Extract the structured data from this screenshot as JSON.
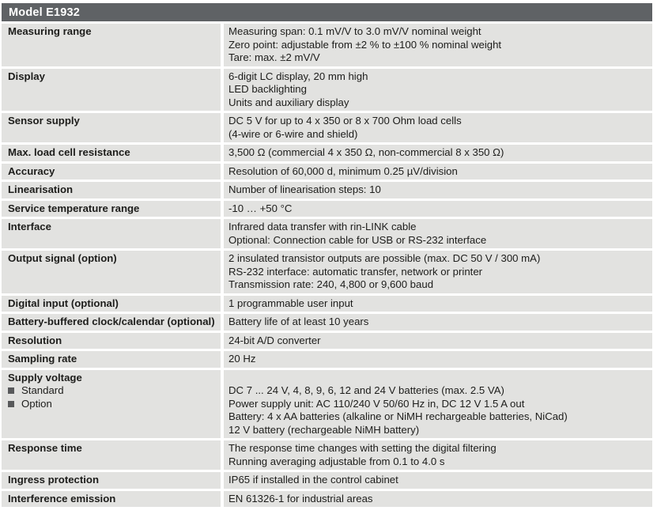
{
  "header": {
    "title": "Model E1932"
  },
  "colors": {
    "header_bg": "#5f6265",
    "title_text": "#ffffff",
    "row_bg": "#e2e2e0",
    "body_text": "#1d1d1b",
    "bullet": "#58595b",
    "page_bg": "#ffffff"
  },
  "table": {
    "rows": [
      {
        "label": "Measuring range",
        "values": [
          "Measuring span: 0.1 mV/V to 3.0 mV/V nominal weight",
          "Zero point: adjustable from ±2 % to ±100 % nominal weight",
          "Tare: max. ±2 mV/V"
        ]
      },
      {
        "label": "Display",
        "values": [
          "6-digit LC display, 20 mm high",
          "LED backlighting",
          "Units and auxiliary display"
        ]
      },
      {
        "label": "Sensor supply",
        "values": [
          "DC 5 V for up to 4 x 350 or 8 x 700 Ohm load cells",
          "(4-wire or 6-wire and shield)"
        ]
      },
      {
        "label": "Max. load cell resistance",
        "values": [
          "3,500 Ω (commercial 4 x 350 Ω, non-commercial 8 x 350 Ω)"
        ]
      },
      {
        "label": "Accuracy",
        "values": [
          "Resolution of 60,000 d, minimum 0.25 µV/division"
        ]
      },
      {
        "label": "Linearisation",
        "values": [
          "Number of linearisation steps: 10"
        ]
      },
      {
        "label": "Service temperature range",
        "values": [
          "-10 … +50 °C"
        ]
      },
      {
        "label": "Interface",
        "values": [
          "Infrared data transfer with rin-LINK cable",
          "Optional: Connection cable for USB or RS-232 interface"
        ]
      },
      {
        "label": "Output signal (option)",
        "values": [
          "2 insulated transistor outputs are possible (max. DC 50 V / 300 mA)",
          "RS-232 interface: automatic transfer, network or printer",
          "Transmission rate: 240, 4,800 or 9,600 baud"
        ]
      },
      {
        "label": "Digital input (optional)",
        "values": [
          "1 programmable user input"
        ]
      },
      {
        "label": "Battery-buffered clock/calendar (optional)",
        "values": [
          "Battery life of at least 10 years"
        ]
      },
      {
        "label": "Resolution",
        "values": [
          "24-bit A/D converter"
        ]
      },
      {
        "label": "Sampling rate",
        "values": [
          "20 Hz"
        ]
      },
      {
        "label": "Supply voltage",
        "sub_items": [
          "Standard",
          "Option"
        ],
        "values": [
          "DC 7 ... 24 V, 4, 8, 9, 6, 12 and 24 V batteries (max. 2.5 VA)",
          "Power supply unit: AC 110/240 V 50/60 Hz in, DC 12 V 1.5 A out",
          "Battery: 4 x AA batteries (alkaline or NiMH rechargeable batteries, NiCad)",
          "12 V battery (rechargeable NiMH battery)"
        ]
      },
      {
        "label": "Response time",
        "values": [
          "The response time changes with setting the digital filtering",
          "Running averaging adjustable from 0.1 to 4.0 s"
        ]
      },
      {
        "label": "Ingress protection",
        "values": [
          "IP65 if installed in the control cabinet"
        ]
      },
      {
        "label": "Interference emission",
        "values": [
          "EN 61326-1 for industrial areas"
        ]
      }
    ]
  }
}
